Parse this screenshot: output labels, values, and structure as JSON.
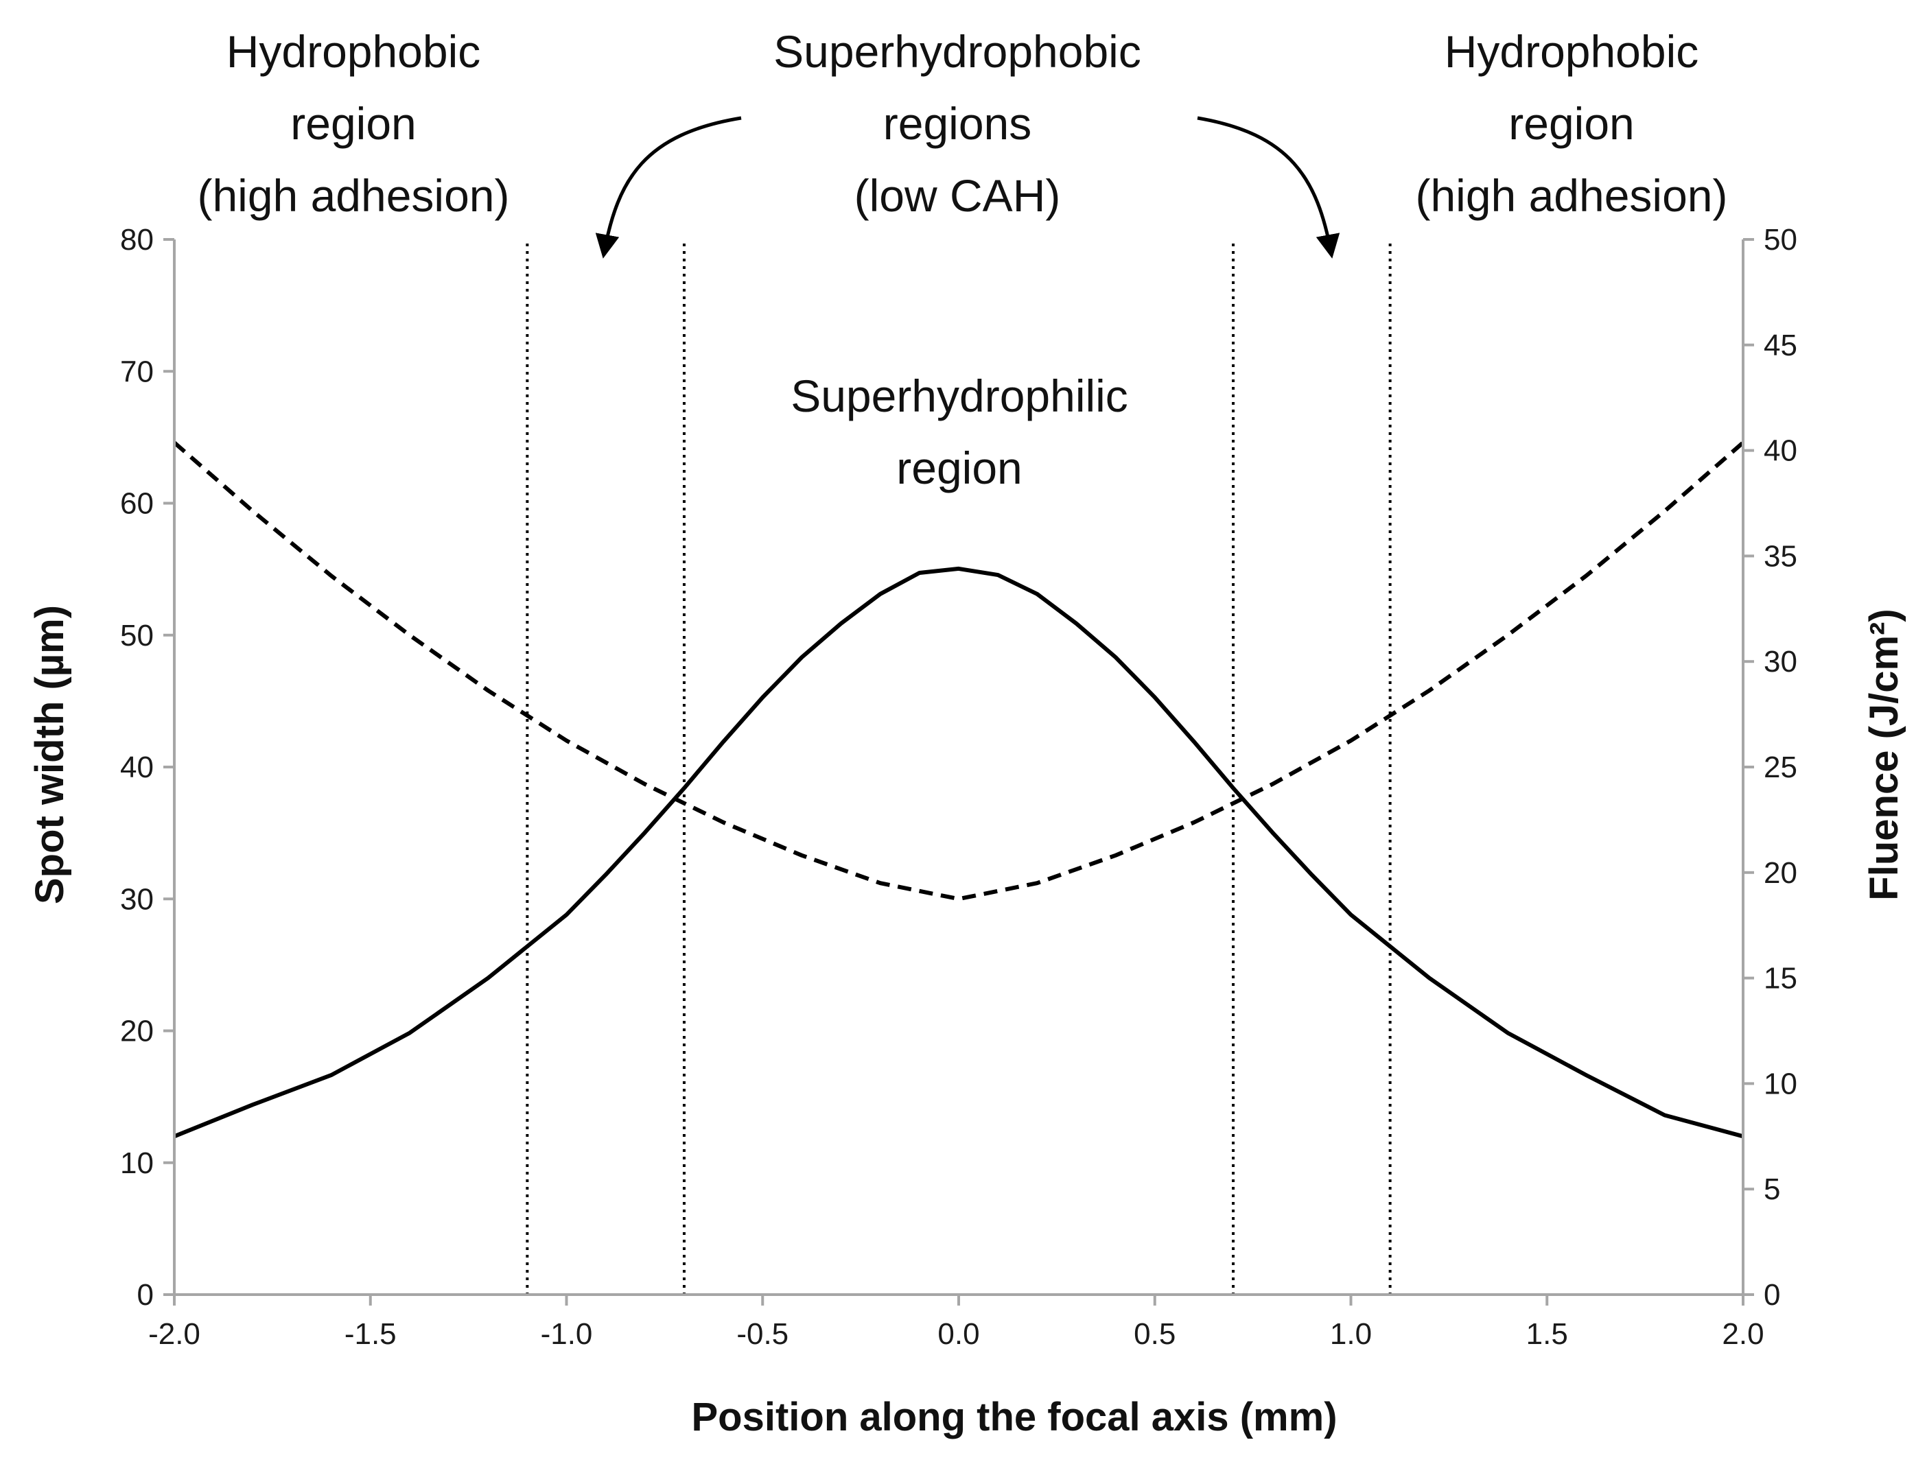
{
  "chart_data": {
    "type": "line",
    "title": "",
    "xlabel": "Position along the focal axis (mm)",
    "ylabel_left": "Spot width (µm)",
    "ylabel_right": "Fluence (J/cm²)",
    "xlim": [
      -2.0,
      2.0
    ],
    "ylim_left": [
      0,
      80
    ],
    "ylim_right": [
      0,
      50
    ],
    "x_ticks": [
      "-2.0",
      "-1.5",
      "-1.0",
      "-0.5",
      "0.0",
      "0.5",
      "1.0",
      "1.5",
      "2.0"
    ],
    "y_ticks_left": [
      "0",
      "10",
      "20",
      "30",
      "40",
      "50",
      "60",
      "70",
      "80"
    ],
    "y_ticks_right": [
      "0",
      "5",
      "10",
      "15",
      "20",
      "25",
      "30",
      "35",
      "40",
      "45",
      "50"
    ],
    "grid": false,
    "series": [
      {
        "axis": "left",
        "style": "dashed",
        "color": "#000000",
        "x": [
          -2.0,
          -1.8,
          -1.6,
          -1.4,
          -1.2,
          -1.0,
          -0.8,
          -0.6,
          -0.4,
          -0.2,
          0.0,
          0.2,
          0.4,
          0.6,
          0.8,
          1.0,
          1.2,
          1.4,
          1.6,
          1.8,
          2.0
        ],
        "y": [
          64.6,
          59.4,
          54.5,
          50.0,
          45.8,
          42.0,
          38.7,
          35.8,
          33.3,
          31.2,
          30.0,
          31.2,
          33.3,
          35.8,
          38.7,
          42.0,
          45.8,
          50.0,
          54.5,
          59.4,
          64.6
        ]
      },
      {
        "axis": "right",
        "style": "solid",
        "color": "#000000",
        "x": [
          -2.0,
          -1.8,
          -1.6,
          -1.4,
          -1.2,
          -1.0,
          -0.9,
          -0.8,
          -0.7,
          -0.6,
          -0.5,
          -0.4,
          -0.3,
          -0.2,
          -0.1,
          0.0,
          0.1,
          0.2,
          0.3,
          0.4,
          0.5,
          0.6,
          0.7,
          0.8,
          0.9,
          1.0,
          1.2,
          1.4,
          1.6,
          1.8,
          2.0
        ],
        "y": [
          7.5,
          9.0,
          10.4,
          12.4,
          15.0,
          18.0,
          19.9,
          21.9,
          24.0,
          26.2,
          28.3,
          30.2,
          31.8,
          33.2,
          34.2,
          34.4,
          34.1,
          33.2,
          31.8,
          30.2,
          28.3,
          26.2,
          24.0,
          21.9,
          19.9,
          18.0,
          15.0,
          12.4,
          10.4,
          8.5,
          7.5
        ]
      }
    ],
    "vlines": [
      -1.1,
      -0.7,
      0.7,
      1.1
    ],
    "annotations": [
      {
        "lines": [
          "Hydrophobic",
          "region",
          "(high adhesion)"
        ]
      },
      {
        "lines": [
          "Superhydrophobic",
          "regions",
          "(low CAH)"
        ]
      },
      {
        "lines": [
          "Hydrophobic",
          "region",
          "(high adhesion)"
        ]
      },
      {
        "lines": [
          "Superhydrophilic",
          "region"
        ]
      }
    ]
  }
}
